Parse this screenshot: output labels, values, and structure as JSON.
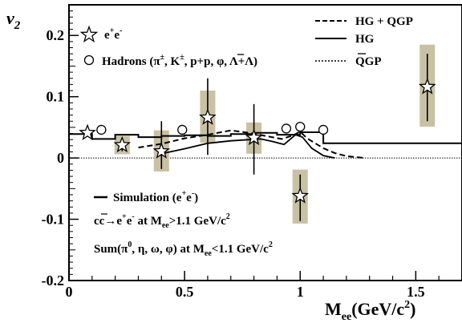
{
  "chart_data": {
    "type": "scatter",
    "title": "",
    "xlabel": "M",
    "xlabel_sub": "ee",
    "xlabel_unit": "(GeV/c",
    "xlabel_unit_sup": "2",
    "xlabel_close": ")",
    "ylabel": "v",
    "ylabel_sub": "2",
    "xlim": [
      0,
      1.7
    ],
    "ylim": [
      -0.2,
      0.25
    ],
    "x_ticks": [
      {
        "value": 0,
        "label": "0"
      },
      {
        "value": 0.5,
        "label": "0.5"
      },
      {
        "value": 1,
        "label": "1"
      },
      {
        "value": 1.5,
        "label": "1.5"
      }
    ],
    "y_ticks": [
      {
        "value": -0.2,
        "label": "-0.2"
      },
      {
        "value": -0.1,
        "label": "-0.1"
      },
      {
        "value": 0,
        "label": "0"
      },
      {
        "value": 0.1,
        "label": "0.1"
      },
      {
        "value": 0.2,
        "label": "0.2"
      }
    ],
    "ee_points": [
      {
        "x": 0.08,
        "y": 0.041
      },
      {
        "x": 0.23,
        "y": 0.021,
        "err_lo": 0.011,
        "err_hi": 0.032,
        "sys_lo": 0.006,
        "sys_hi": 0.036
      },
      {
        "x": 0.4,
        "y": 0.011,
        "err_lo": -0.018,
        "err_hi": 0.06,
        "sys_lo": -0.022,
        "sys_hi": 0.045
      },
      {
        "x": 0.6,
        "y": 0.066,
        "err_lo": 0.005,
        "err_hi": 0.13,
        "sys_lo": 0.025,
        "sys_hi": 0.11
      },
      {
        "x": 0.8,
        "y": 0.033,
        "err_lo": -0.027,
        "err_hi": 0.088,
        "sys_lo": 0.007,
        "sys_hi": 0.058
      },
      {
        "x": 1.0,
        "y": -0.062,
        "err_lo": -0.103,
        "err_hi": -0.027,
        "sys_lo": -0.107,
        "sys_hi": -0.019
      },
      {
        "x": 1.55,
        "y": 0.116,
        "err_lo": 0.06,
        "err_hi": 0.17,
        "sys_lo": 0.051,
        "sys_hi": 0.185
      }
    ],
    "hadron_points": [
      {
        "x": 0.14,
        "y": 0.046
      },
      {
        "x": 0.49,
        "y": 0.046
      },
      {
        "x": 0.94,
        "y": 0.048
      },
      {
        "x": 1.0,
        "y": 0.051
      },
      {
        "x": 1.1,
        "y": 0.046
      }
    ],
    "simulation_steps": [
      [
        0,
        0.039
      ],
      [
        0.1,
        0.039
      ],
      [
        0.1,
        0.031
      ],
      [
        0.2,
        0.031
      ],
      [
        0.2,
        0.038
      ],
      [
        0.3,
        0.038
      ],
      [
        0.3,
        0.034
      ],
      [
        0.4,
        0.034
      ],
      [
        0.4,
        0.036
      ],
      [
        0.5,
        0.036
      ],
      [
        0.5,
        0.037
      ],
      [
        0.6,
        0.037
      ],
      [
        0.6,
        0.036
      ],
      [
        0.7,
        0.036
      ],
      [
        0.7,
        0.039
      ],
      [
        0.8,
        0.039
      ],
      [
        0.8,
        0.041
      ],
      [
        0.9,
        0.041
      ],
      [
        0.9,
        0.038
      ],
      [
        1.0,
        0.038
      ],
      [
        1.0,
        0.042
      ],
      [
        1.1,
        0.042
      ],
      [
        1.1,
        0.024
      ],
      [
        1.7,
        0.024
      ]
    ],
    "hg_qgp_curve": [
      [
        0.3,
        0.017
      ],
      [
        0.4,
        0.023
      ],
      [
        0.5,
        0.032
      ],
      [
        0.6,
        0.038
      ],
      [
        0.7,
        0.045
      ],
      [
        0.78,
        0.041
      ],
      [
        0.85,
        0.036
      ],
      [
        0.92,
        0.031
      ],
      [
        0.97,
        0.037
      ],
      [
        1.0,
        0.043
      ],
      [
        1.03,
        0.032
      ],
      [
        1.1,
        0.016
      ],
      [
        1.15,
        0.008
      ],
      [
        1.2,
        0.003
      ],
      [
        1.28,
        0.0
      ]
    ],
    "hg_curve": [
      [
        0.4,
        0.007
      ],
      [
        0.5,
        0.015
      ],
      [
        0.6,
        0.024
      ],
      [
        0.7,
        0.028
      ],
      [
        0.78,
        0.03
      ],
      [
        0.83,
        0.031
      ],
      [
        0.88,
        0.027
      ],
      [
        0.93,
        0.022
      ],
      [
        0.98,
        0.038
      ],
      [
        1.01,
        0.034
      ],
      [
        1.05,
        0.016
      ],
      [
        1.1,
        0.004
      ],
      [
        1.15,
        0.0
      ]
    ],
    "qgp_curve": [
      [
        0.0,
        0.0
      ],
      [
        1.7,
        0.0
      ]
    ],
    "legend": {
      "ee": "e",
      "ee_sup1": "+",
      "ee_mid": "e",
      "ee_sup2": "-",
      "hadrons": "Hadrons (π",
      "hadrons_rest": "±",
      "hadrons_k": ", K",
      "hadrons_k_sup": "±",
      "hadrons_p": ", p+p, φ, Λ+Λ)",
      "hg_qgp": "HG + QGP",
      "hg": "HG",
      "qgp": "QGP",
      "simulation": "Simulation (e",
      "simulation_sup1": "+",
      "simulation_mid": "e",
      "simulation_sup2": "-",
      "simulation_close": ")",
      "cc_text": "cc→e",
      "cc_sup1": "+",
      "cc_mid": "e",
      "cc_sup2": "-",
      "cc_at": " at M",
      "cc_sub": "ee",
      "cc_val": ">1.1 GeV/c",
      "cc_sup3": "2",
      "sum_text": "Sum(π",
      "sum_sup0": "0",
      "sum_rest": ", η, ω, φ) at M",
      "sum_sub": "ee",
      "sum_val": "<1.1 GeV/c",
      "sum_sup2": "2"
    }
  }
}
